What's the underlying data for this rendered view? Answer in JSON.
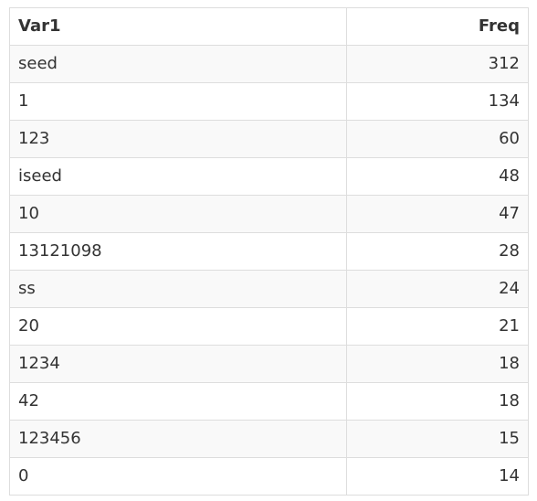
{
  "table": {
    "headers": [
      "Var1",
      "Freq"
    ],
    "rows": [
      [
        "seed",
        "312"
      ],
      [
        "1",
        "134"
      ],
      [
        "123",
        "60"
      ],
      [
        "iseed",
        "48"
      ],
      [
        "10",
        "47"
      ],
      [
        "13121098",
        "28"
      ],
      [
        "ss",
        "24"
      ],
      [
        "20",
        "21"
      ],
      [
        "1234",
        "18"
      ],
      [
        "42",
        "18"
      ],
      [
        "123456",
        "15"
      ],
      [
        "0",
        "14"
      ]
    ]
  }
}
